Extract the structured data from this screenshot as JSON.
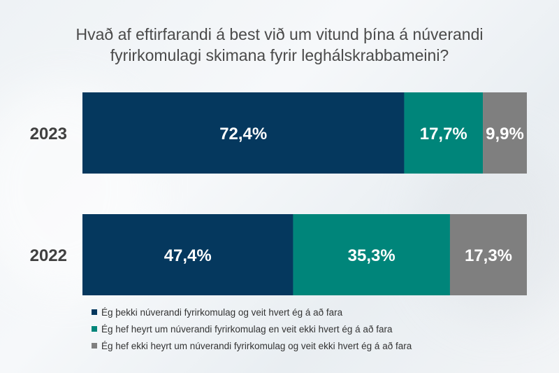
{
  "title_lines": [
    "Hvað af eftirfarandi á best við um vitund þína á núverandi",
    "fyrirkomulagi skimana fyrir leghálskrabbameini?"
  ],
  "colors": {
    "series1": "#05385e",
    "series2": "#00857a",
    "series3": "#7f7f7f"
  },
  "chart_data": {
    "type": "bar",
    "orientation": "horizontal",
    "stacked": "100%",
    "categories": [
      "2023",
      "2022"
    ],
    "series": [
      {
        "name": "Ég þekki núverandi fyrirkomulag og veit hvert ég á að fara",
        "values": [
          72.4,
          47.4
        ],
        "labels": [
          "72,4%",
          "47,4%"
        ]
      },
      {
        "name": "Ég hef heyrt um núverandi fyrirkomulag en veit ekki hvert ég á að fara",
        "values": [
          17.7,
          35.3
        ],
        "labels": [
          "17,7%",
          "35,3%"
        ]
      },
      {
        "name": "Ég hef ekki heyrt um núverandi fyrirkomulag og veit ekki hvert ég á að fara",
        "values": [
          9.9,
          17.3
        ],
        "labels": [
          "9,9%",
          "17,3%"
        ]
      }
    ],
    "xlim": [
      0,
      100
    ],
    "grid": false,
    "legend": "bottom"
  }
}
